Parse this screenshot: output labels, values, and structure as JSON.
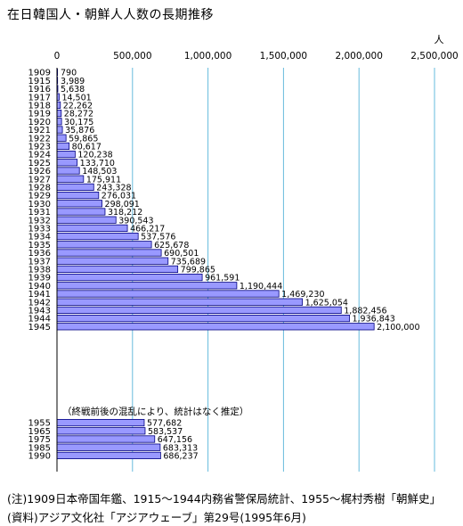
{
  "title": "在日韓国人・朝鮮人人数の長期推移",
  "footnotes": {
    "note": "(注)1909日本帝国年鑑、1915〜1944内務省警保局統計、1955〜梶村秀樹「朝鮮史」",
    "source": "(資料)アジア文化社「アジアウェーブ」第29号(1995年6月)"
  },
  "chart_data": {
    "type": "bar",
    "orientation": "horizontal",
    "unit_label": "人",
    "xlim": [
      0,
      2500000
    ],
    "x_ticks": [
      0,
      500000,
      1000000,
      1500000,
      2000000,
      2500000
    ],
    "x_tick_labels": [
      "0",
      "500,000",
      "1,000,000",
      "1,500,000",
      "2,000,000",
      "2,500,000"
    ],
    "axis_position": "top",
    "grid": true,
    "bar_color": "#9999ff",
    "bar_edge_color": "#000080",
    "grid_color": "#66bbdd",
    "groups": [
      {
        "categories": [
          "1909",
          "1915",
          "1916",
          "1917",
          "1918",
          "1919",
          "1920",
          "1921",
          "1922",
          "1923",
          "1924",
          "1925",
          "1926",
          "1927",
          "1928",
          "1929",
          "1930",
          "1931",
          "1932",
          "1933",
          "1934",
          "1935",
          "1936",
          "1937",
          "1938",
          "1939",
          "1940",
          "1941",
          "1942",
          "1943",
          "1944",
          "1945"
        ],
        "values": [
          790,
          3989,
          5638,
          14501,
          22262,
          28272,
          30175,
          35876,
          59865,
          80617,
          120238,
          133710,
          148503,
          175911,
          243328,
          276031,
          298091,
          318212,
          390543,
          466217,
          537576,
          625678,
          690501,
          735689,
          799865,
          961591,
          1190444,
          1469230,
          1625054,
          1882456,
          1936843,
          2100000
        ],
        "labels": [
          "790",
          "3,989",
          "5,638",
          "14,501",
          "22,262",
          "28,272",
          "30,175",
          "35,876",
          "59,865",
          "80,617",
          "120,238",
          "133,710",
          "148,503",
          "175,911",
          "243,328",
          "276,031",
          "298,091",
          "318,212",
          "390,543",
          "466,217",
          "537,576",
          "625,678",
          "690,501",
          "735,689",
          "799,865",
          "961,591",
          "1,190,444",
          "1,469,230",
          "1,625,054",
          "1,882,456",
          "1,936,843",
          "2,100,000"
        ]
      },
      {
        "categories": [
          "1955",
          "1965",
          "1975",
          "1985",
          "1990"
        ],
        "values": [
          577682,
          583537,
          647156,
          683313,
          686237
        ],
        "labels": [
          "577,682",
          "583,537",
          "647,156",
          "683,313",
          "686,237"
        ]
      }
    ],
    "annotation": "（終戦前後の混乱により、統計はなく推定）"
  }
}
